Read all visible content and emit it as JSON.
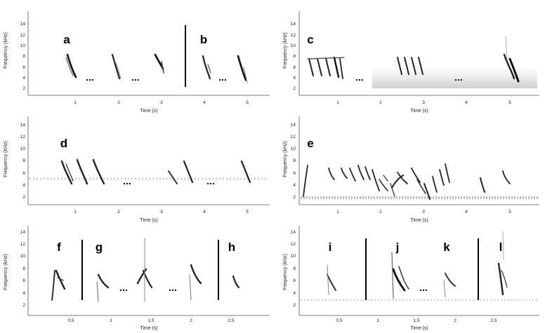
{
  "axes": {
    "ylabel": "Frequency (kHz)",
    "xlabel": "Time (s)",
    "yticks": [
      "2",
      "4",
      "6",
      "8",
      "10",
      "12",
      "14"
    ]
  },
  "ellipsis": "...",
  "panels": [
    {
      "xticks": [
        "1",
        "2",
        "3",
        "4",
        "5"
      ],
      "letters": [
        "a",
        "b"
      ]
    },
    {
      "xticks": [
        "1",
        "2",
        "3",
        "4",
        "5"
      ],
      "letters": [
        "c"
      ]
    },
    {
      "xticks": [
        "1",
        "2",
        "3",
        "4",
        "5"
      ],
      "letters": [
        "d"
      ]
    },
    {
      "xticks": [
        "1",
        "2",
        "3",
        "4",
        "5"
      ],
      "letters": [
        "e"
      ]
    },
    {
      "xticks": [
        "0.5",
        "1",
        "1.5",
        "2",
        "2.5"
      ],
      "letters": [
        "f",
        "g",
        "h"
      ]
    },
    {
      "xticks": [
        "0.5",
        "1",
        "1.5",
        "2",
        "2.5"
      ],
      "letters": [
        "i",
        "j",
        "k",
        "l"
      ]
    }
  ]
}
